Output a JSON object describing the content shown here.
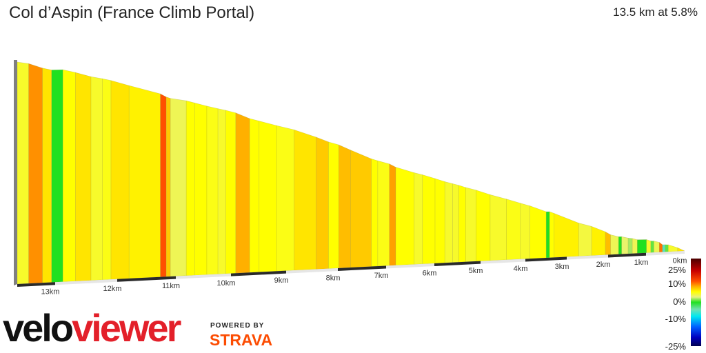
{
  "title": "Col d’Aspin (France Climb Portal)",
  "summary": "13.5 km at 5.8%",
  "logo": {
    "part1": "velo",
    "part2": "viewer"
  },
  "powered_by": {
    "label": "POWERED BY",
    "brand": "STRAVA"
  },
  "chart_data": {
    "type": "area",
    "description_axis": "distance remaining (km) vs elevation, colored by gradient",
    "total_km": 13.5,
    "average_gradient_pct": 5.8,
    "x_ticks": [
      "13km",
      "12km",
      "11km",
      "10km",
      "9km",
      "8km",
      "7km",
      "6km",
      "5km",
      "4km",
      "3km",
      "2km",
      "1km",
      "0km"
    ],
    "x_tick_values": [
      13,
      12,
      11,
      10,
      9,
      8,
      7,
      6,
      5,
      4,
      3,
      2,
      1,
      0
    ],
    "segments_left_to_right": [
      {
        "km": 0.15,
        "gradient": 5
      },
      {
        "km": 0.18,
        "gradient": 10
      },
      {
        "km": 0.12,
        "gradient": 7
      },
      {
        "km": 0.17,
        "gradient": 0
      },
      {
        "km": 0.2,
        "gradient": 6
      },
      {
        "km": 0.25,
        "gradient": 7
      },
      {
        "km": 0.18,
        "gradient": 5
      },
      {
        "km": 0.14,
        "gradient": 5.5
      },
      {
        "km": 0.3,
        "gradient": 7
      },
      {
        "km": 0.53,
        "gradient": 6.5
      },
      {
        "km": 0.1,
        "gradient": 12
      },
      {
        "km": 0.07,
        "gradient": 8
      },
      {
        "km": 0.28,
        "gradient": 4
      },
      {
        "km": 0.15,
        "gradient": 6
      },
      {
        "km": 0.22,
        "gradient": 6
      },
      {
        "km": 0.2,
        "gradient": 5.5
      },
      {
        "km": 0.14,
        "gradient": 5
      },
      {
        "km": 0.18,
        "gradient": 6
      },
      {
        "km": 0.25,
        "gradient": 9
      },
      {
        "km": 0.17,
        "gradient": 6
      },
      {
        "km": 0.32,
        "gradient": 6
      },
      {
        "km": 0.32,
        "gradient": 5.5
      },
      {
        "km": 0.42,
        "gradient": 7
      },
      {
        "km": 0.24,
        "gradient": 8
      },
      {
        "km": 0.2,
        "gradient": 6
      },
      {
        "km": 0.24,
        "gradient": 8.5
      },
      {
        "km": 0.43,
        "gradient": 8
      },
      {
        "km": 0.13,
        "gradient": 6
      },
      {
        "km": 0.24,
        "gradient": 5.5
      },
      {
        "km": 0.13,
        "gradient": 9.5
      },
      {
        "km": 0.38,
        "gradient": 6
      },
      {
        "km": 0.17,
        "gradient": 5
      },
      {
        "km": 0.26,
        "gradient": 6
      },
      {
        "km": 0.21,
        "gradient": 6
      },
      {
        "km": 0.17,
        "gradient": 5
      },
      {
        "km": 0.13,
        "gradient": 5
      },
      {
        "km": 0.15,
        "gradient": 6
      },
      {
        "km": 0.22,
        "gradient": 5
      },
      {
        "km": 0.31,
        "gradient": 6
      },
      {
        "km": 0.36,
        "gradient": 5
      },
      {
        "km": 0.31,
        "gradient": 5.5
      },
      {
        "km": 0.22,
        "gradient": 5
      },
      {
        "km": 0.39,
        "gradient": 6
      },
      {
        "km": 0.08,
        "gradient": 0
      },
      {
        "km": 0.11,
        "gradient": 6
      },
      {
        "km": 0.59,
        "gradient": 6.5
      },
      {
        "km": 0.31,
        "gradient": 4.5
      },
      {
        "km": 0.33,
        "gradient": 6.5
      },
      {
        "km": 0.13,
        "gradient": 8.5
      },
      {
        "km": 0.21,
        "gradient": 4
      },
      {
        "km": 0.08,
        "gradient": 0
      },
      {
        "km": 0.17,
        "gradient": 3.5
      },
      {
        "km": 0.11,
        "gradient": 2
      },
      {
        "km": 0.13,
        "gradient": 4
      },
      {
        "km": 0.24,
        "gradient": 0
      },
      {
        "km": 0.11,
        "gradient": 5
      },
      {
        "km": 0.08,
        "gradient": 1
      },
      {
        "km": 0.14,
        "gradient": 4
      },
      {
        "km": 0.08,
        "gradient": 11
      },
      {
        "km": 0.07,
        "gradient": -5
      },
      {
        "km": 0.08,
        "gradient": 1
      },
      {
        "km": 0.24,
        "gradient": 5
      },
      {
        "km": 0.18,
        "gradient": 7
      }
    ],
    "legend": {
      "labels": [
        "25%",
        "10%",
        "0%",
        "-10%",
        "-25%"
      ],
      "values": [
        25,
        10,
        0,
        -10,
        -25
      ],
      "color_stops": [
        {
          "v": 25,
          "c": "#4a0000"
        },
        {
          "v": 18,
          "c": "#c80000"
        },
        {
          "v": 12,
          "c": "#ff5000"
        },
        {
          "v": 9,
          "c": "#ffb000"
        },
        {
          "v": 6,
          "c": "#ffff00"
        },
        {
          "v": 3,
          "c": "#e6f080"
        },
        {
          "v": 0,
          "c": "#20e020"
        },
        {
          "v": -4,
          "c": "#70e0b0"
        },
        {
          "v": -8,
          "c": "#00e8f0"
        },
        {
          "v": -14,
          "c": "#0060ff"
        },
        {
          "v": -20,
          "c": "#0000c0"
        },
        {
          "v": -25,
          "c": "#000050"
        }
      ]
    }
  }
}
